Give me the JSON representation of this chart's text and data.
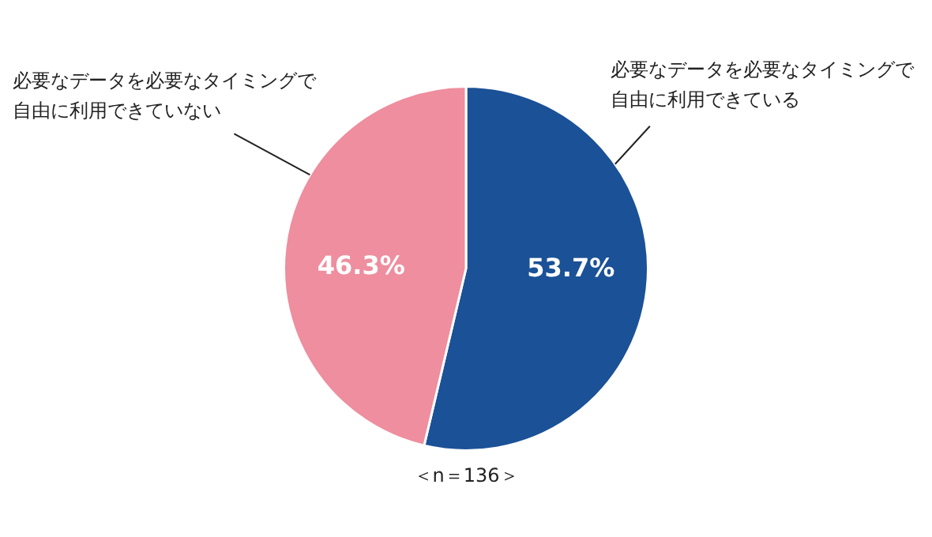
{
  "chart_data": {
    "type": "pie",
    "categories": [
      "必要なデータを必要なタイミングで自由に利用できている",
      "必要なデータを必要なタイミングで自由に利用できていない"
    ],
    "values": [
      53.7,
      46.3
    ],
    "colors": [
      "#1b5196",
      "#ee8e9e"
    ],
    "value_labels": [
      "53.7%",
      "46.3%"
    ],
    "annotations": [
      "＜n＝136＞"
    ],
    "legend": false
  }
}
